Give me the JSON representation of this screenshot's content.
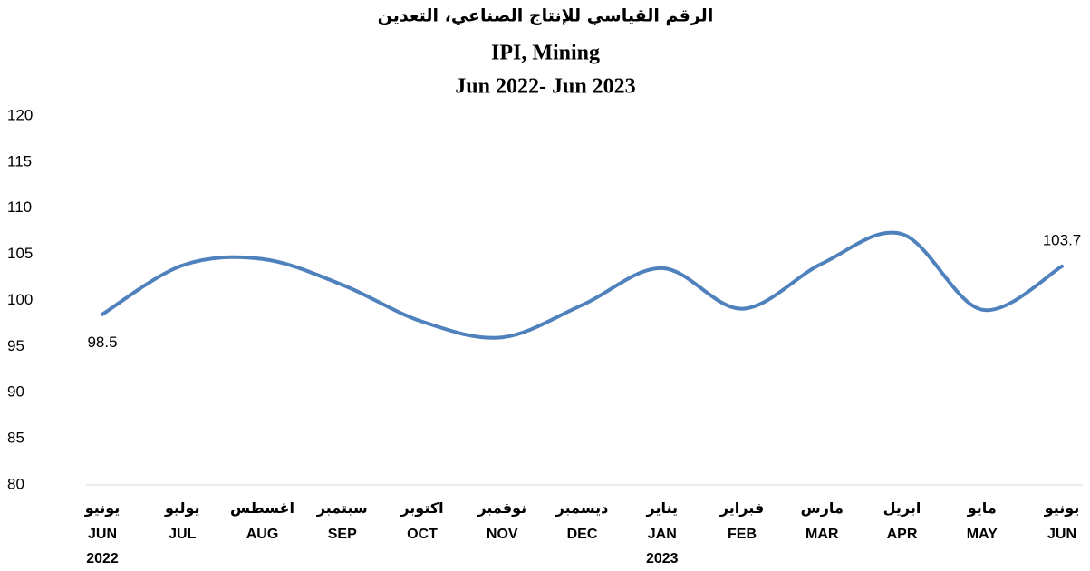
{
  "chart_data": {
    "type": "line",
    "title": "الرقم القياسي للإنتاج الصناعي، التعدين",
    "subtitle": "IPI, Mining",
    "period": "Jun 2022- Jun 2023",
    "categories": [
      "JUN",
      "JUL",
      "AUG",
      "SEP",
      "OCT",
      "NOV",
      "DEC",
      "JAN",
      "FEB",
      "MAR",
      "APR",
      "MAY",
      "JUN"
    ],
    "categories_ar": [
      "يونيو",
      "يوليو",
      "اغسطس",
      "سبتمبر",
      "اكتوبر",
      "نوفمبر",
      "ديسمبر",
      "يناير",
      "فبراير",
      "مارس",
      "ابريل",
      "مايو",
      "يونيو"
    ],
    "category_years": [
      "2022",
      null,
      null,
      null,
      null,
      null,
      null,
      "2023",
      null,
      null,
      null,
      null,
      null
    ],
    "series": [
      {
        "name": "IPI, Mining",
        "color": "#4f81bd",
        "values": [
          98.5,
          103.8,
          104.5,
          101.7,
          97.7,
          96.0,
          99.5,
          103.5,
          99.1,
          104.0,
          107.2,
          99.0,
          103.7
        ],
        "value_labels": [
          "98.5",
          null,
          null,
          null,
          null,
          null,
          null,
          null,
          null,
          null,
          null,
          null,
          "103.7"
        ]
      }
    ],
    "ylim": [
      80,
      120
    ],
    "yticks": [
      80,
      85,
      90,
      95,
      100,
      105,
      110,
      115,
      120
    ],
    "grid": false
  }
}
